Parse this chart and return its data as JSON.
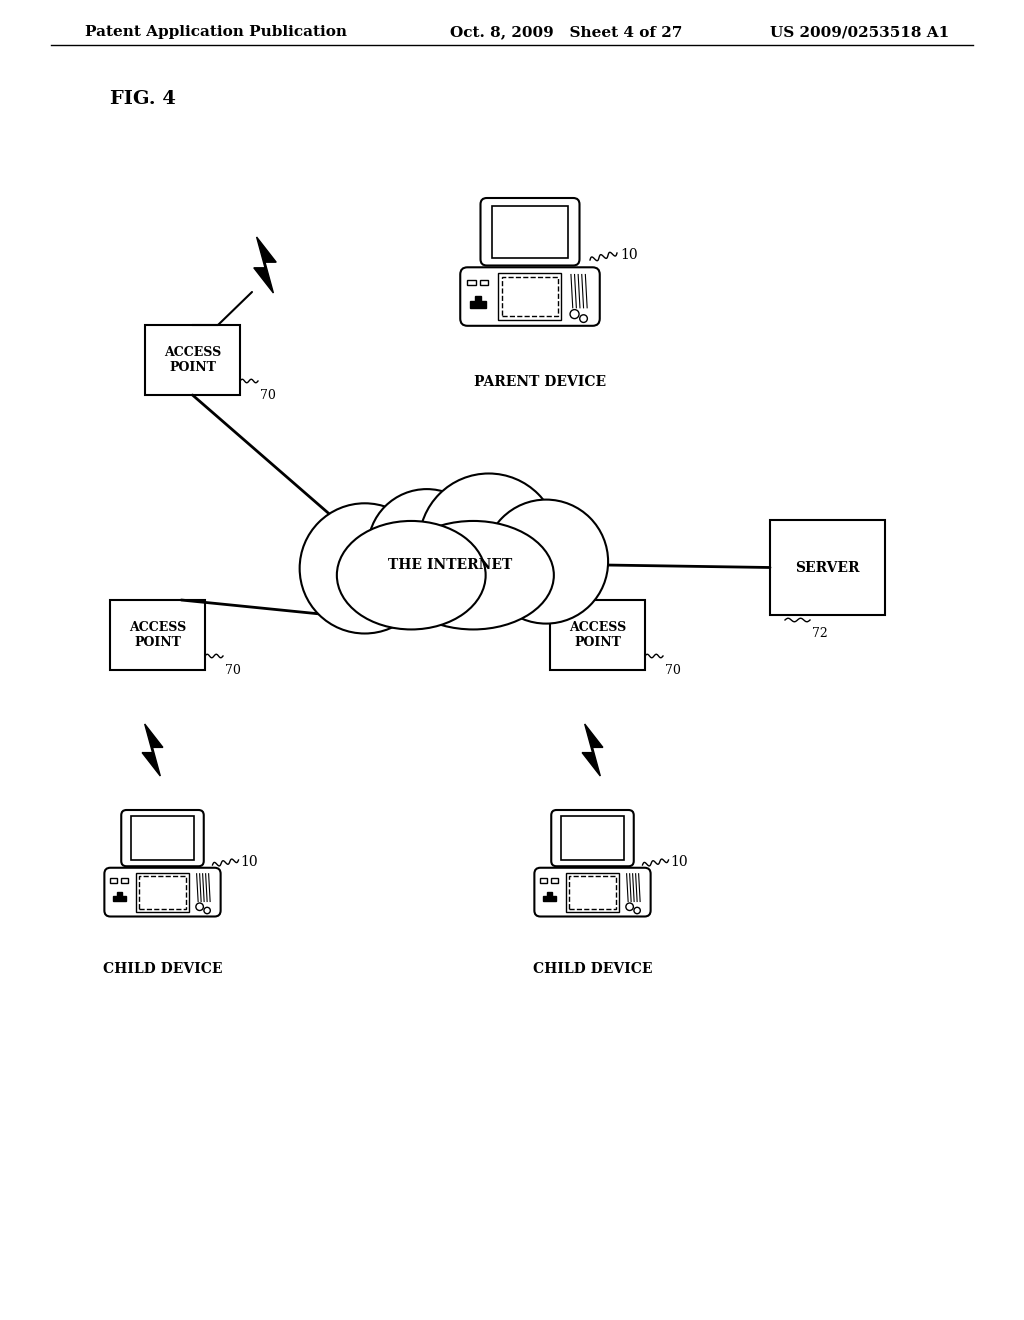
{
  "title_left": "Patent Application Publication",
  "title_mid": "Oct. 8, 2009   Sheet 4 of 27",
  "title_right": "US 2009/0253518 A1",
  "fig_label": "FIG. 4",
  "bg_color": "#ffffff",
  "text_color": "#000000",
  "line_color": "#000000",
  "header_fontsize": 11,
  "fig_label_fontsize": 14,
  "label_fontsize": 10,
  "small_fontsize": 9,
  "internet_text": "THE INTERNET",
  "server_text": "SERVER",
  "server_label": "72",
  "parent_label": "10",
  "parent_text": "PARENT DEVICE",
  "child_text": "CHILD DEVICE",
  "child_label": "10",
  "ap_text": "ACCESS\nPOINT",
  "ap_label": "70"
}
